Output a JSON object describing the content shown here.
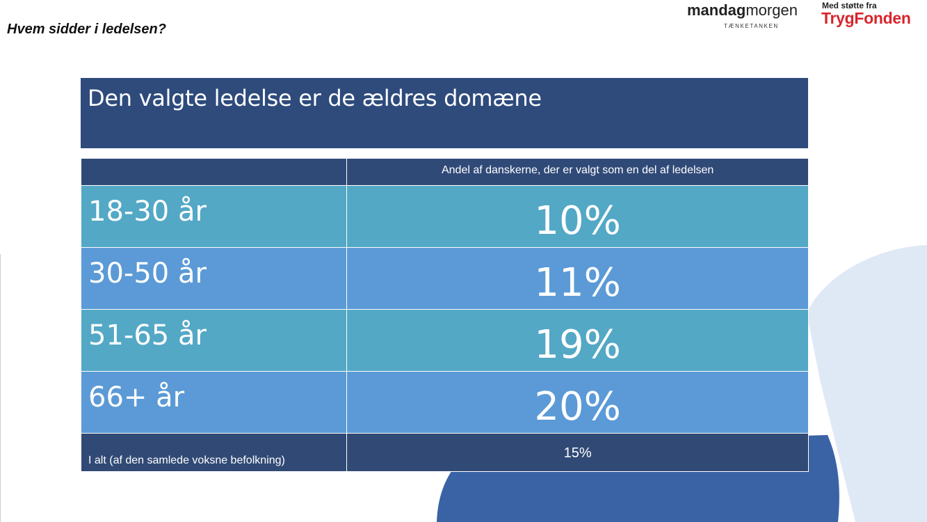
{
  "heading": "Hvem sidder i ledelsen?",
  "logos": {
    "mandagmorgen_bold": "mandag",
    "mandagmorgen_light": "morgen",
    "mandagmorgen_sub": "TÆNKETANKEN",
    "trygfonden_small": "Med støtte fra",
    "trygfonden_name": "TrygFonden"
  },
  "title": "Den valgte ledelse er de ældres domæne",
  "table": {
    "column_header": "Andel af danskerne, der er valgt som en del af ledelsen",
    "rows": [
      {
        "label": "18-30 år",
        "value": "10%"
      },
      {
        "label": "30-50 år",
        "value": "11%"
      },
      {
        "label": "51-65 år",
        "value": "19%"
      },
      {
        "label": "66+ år",
        "value": "20%"
      }
    ],
    "total": {
      "label": "I alt (af den samlede voksne befolkning)",
      "value": "15%"
    }
  },
  "colors": {
    "title_bg": "#2e4b7c",
    "teal_row": "#53a8c5",
    "blue_row": "#5b9ad6",
    "header_bg": "#304a78",
    "brand_red": "#d7262d"
  }
}
